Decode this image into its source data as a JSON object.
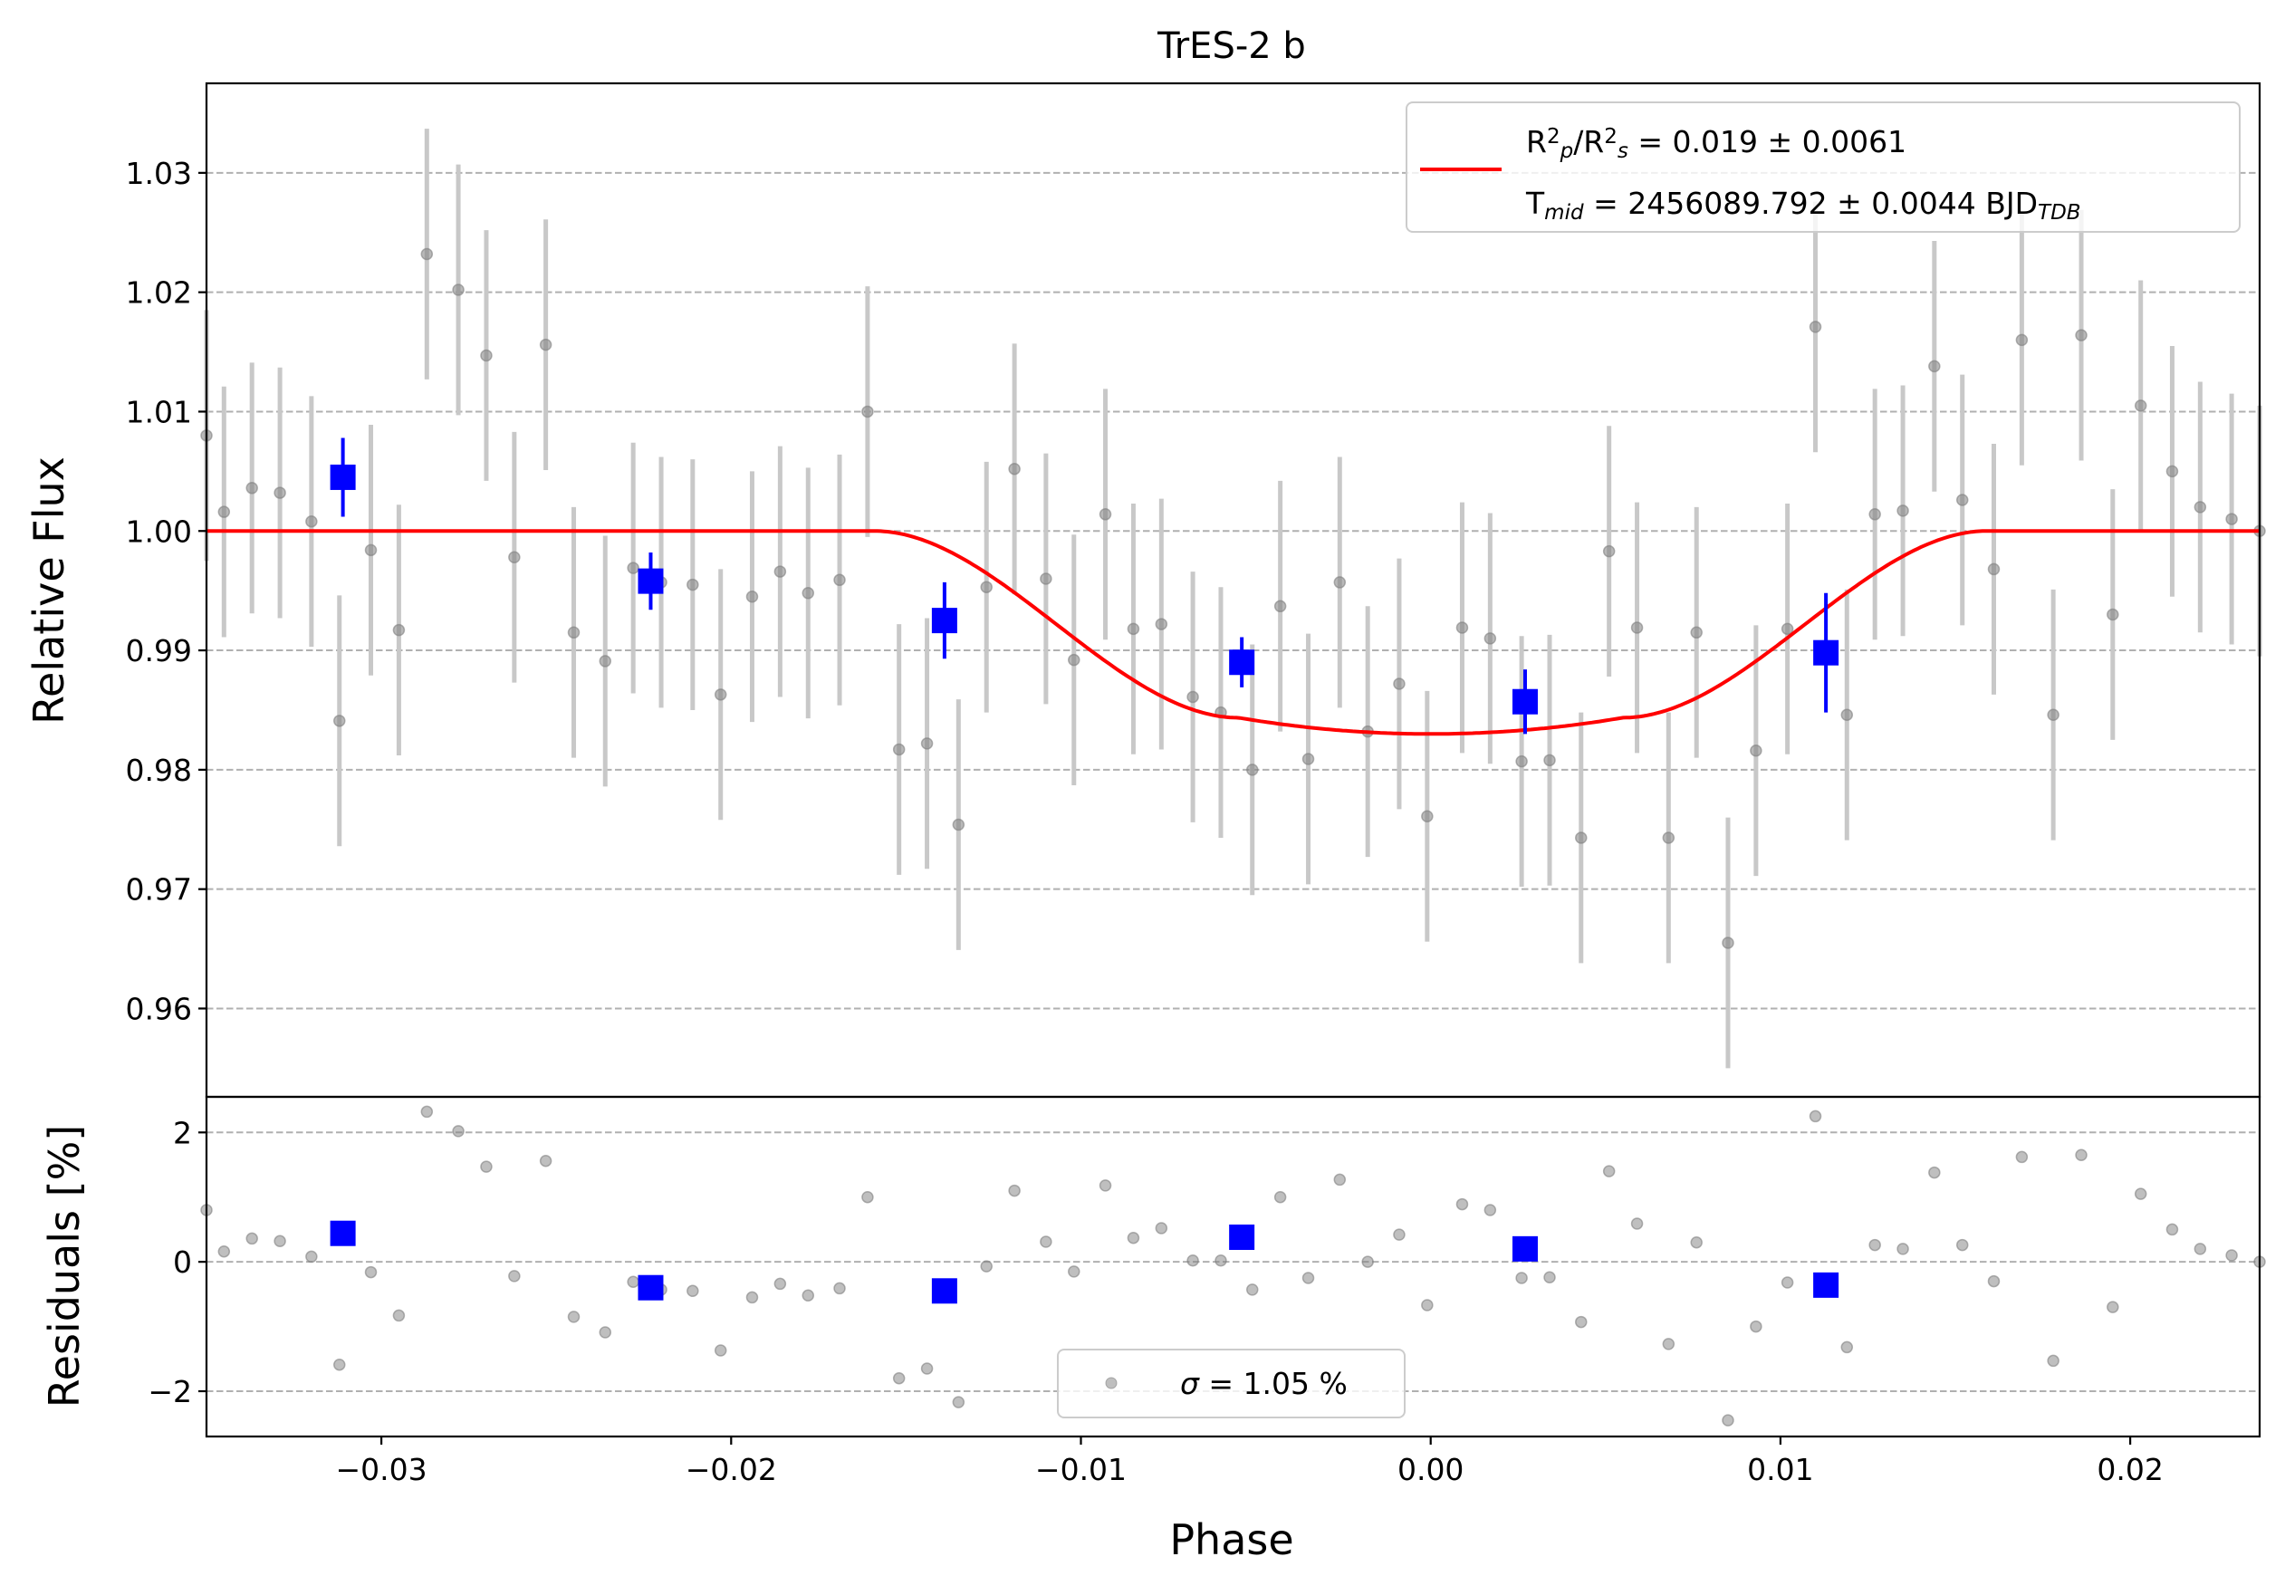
{
  "chart_data": [
    {
      "type": "scatter",
      "title": "TrES-2 b",
      "xlabel": "",
      "ylabel": "Relative Flux",
      "xlim": [
        -0.035,
        0.0237
      ],
      "ylim": [
        0.9526,
        1.0375
      ],
      "yticks": [
        0.96,
        0.97,
        0.98,
        0.99,
        1.0,
        1.01,
        1.02,
        1.03
      ],
      "ytick_labels": [
        "0.96",
        "0.97",
        "0.98",
        "0.99",
        "1.00",
        "1.01",
        "1.02",
        "1.03"
      ],
      "grid": "horizontal dashed",
      "legend_position": "top-right",
      "legend": {
        "entries": [
          {
            "line1_parts": [
              [
                "R",
                "normal"
              ],
              [
                "2",
                "sup"
              ],
              [
                "p",
                "sub"
              ],
              [
                "/R",
                "normal"
              ],
              [
                "2",
                "sup"
              ],
              [
                "s",
                "sub"
              ],
              [
                " = 0.019 ± 0.0061",
                "normal"
              ]
            ],
            "line2_parts": [
              [
                "T",
                "normal"
              ],
              [
                "mid",
                "sub"
              ],
              [
                " = 2456089.792 ± 0.0044 BJD",
                "normal"
              ],
              [
                "TDB",
                "sub"
              ]
            ]
          }
        ]
      },
      "model_line": {
        "color": "#ff0000",
        "depth_fraction": 0.017,
        "ingress_start": -0.0159,
        "ingress_end": -0.0055,
        "egress_start": 0.0055,
        "egress_end": 0.0159
      },
      "points": {
        "color": "#808080",
        "errorbar_color": "#c8c8c8",
        "x": [
          -0.035,
          -0.0345,
          -0.0337,
          -0.0329,
          -0.032,
          -0.0312,
          -0.0303,
          -0.0295,
          -0.0287,
          -0.0278,
          -0.027,
          -0.0262,
          -0.0253,
          -0.0245,
          -0.0236,
          -0.0228,
          -0.022,
          -0.0211,
          -0.0203,
          -0.0194,
          -0.0186,
          -0.0178,
          -0.0169,
          -0.0161,
          -0.0152,
          -0.0144,
          -0.0135,
          -0.0127,
          -0.0119,
          -0.011,
          -0.0102,
          -0.0093,
          -0.0085,
          -0.0077,
          -0.0068,
          -0.006,
          -0.0051,
          -0.0043,
          -0.0035,
          -0.0026,
          -0.0018,
          -0.0009,
          -0.0001,
          0.0009,
          0.0017,
          0.0026,
          0.0034,
          0.0043,
          0.0051,
          0.0059,
          0.0068,
          0.0076,
          0.0085,
          0.0093,
          0.0102,
          0.011,
          0.0119,
          0.0127,
          0.0135,
          0.0144,
          0.0152,
          0.0161,
          0.0169,
          0.0178,
          0.0186,
          0.0195,
          0.0203,
          0.0212,
          0.022,
          0.0229,
          0.0237
        ],
        "y": [
          1.008,
          1.0016,
          1.0036,
          1.0032,
          1.0008,
          0.9841,
          0.9984,
          0.9917,
          1.0232,
          1.0202,
          1.0147,
          0.9978,
          1.0156,
          0.9915,
          0.9891,
          0.9969,
          0.9957,
          0.9955,
          0.9863,
          0.9945,
          0.9966,
          0.9948,
          0.9959,
          1.01,
          0.9817,
          0.9822,
          0.9754,
          0.9953,
          1.0052,
          0.996,
          0.9892,
          1.0014,
          0.9918,
          0.9922,
          0.9861,
          0.9848,
          0.98,
          0.9937,
          0.9809,
          0.9957,
          0.9832,
          0.9872,
          0.9761,
          0.9919,
          0.991,
          0.9807,
          0.9808,
          0.9743,
          0.9983,
          0.9919,
          0.9743,
          0.9915,
          0.9655,
          0.9816,
          0.9918,
          1.0171,
          0.9846,
          1.0014,
          1.0017,
          1.0138,
          1.0026,
          0.9968,
          1.016,
          0.9846,
          1.0164,
          0.993,
          1.0105,
          1.005,
          1.002,
          1.001,
          1.0
        ],
        "yerr": 0.0105
      },
      "binned": {
        "color": "#0000ff",
        "x": [
          -0.0311,
          -0.0223,
          -0.0139,
          -0.0054,
          0.0027,
          0.0113
        ],
        "y": [
          1.0045,
          0.9958,
          0.9925,
          0.989,
          0.9857,
          0.9898
        ],
        "yerr": [
          0.0033,
          0.0024,
          0.0032,
          0.0021,
          0.0027,
          0.005
        ]
      }
    },
    {
      "type": "scatter",
      "title": "",
      "xlabel": "Phase",
      "ylabel": "Residuals [%]",
      "xlim": [
        -0.035,
        0.0237
      ],
      "ylim": [
        -2.7,
        2.55
      ],
      "yticks": [
        -2,
        0,
        2
      ],
      "ytick_labels": [
        "−2",
        "0",
        "2"
      ],
      "xticks": [
        -0.03,
        -0.02,
        -0.01,
        0.0,
        0.01,
        0.02
      ],
      "xtick_labels": [
        "−0.03",
        "−0.02",
        "−0.01",
        "0.00",
        "0.01",
        "0.02"
      ],
      "grid": "horizontal dashed",
      "legend_position": "bottom-center",
      "legend": {
        "entries": [
          {
            "parts": [
              [
                "σ",
                "italic"
              ],
              [
                " = 1.05 %",
                "normal"
              ]
            ]
          }
        ]
      },
      "points": {
        "color": "#808080",
        "x": [
          -0.035,
          -0.0345,
          -0.0337,
          -0.0329,
          -0.032,
          -0.0312,
          -0.0303,
          -0.0295,
          -0.0287,
          -0.0278,
          -0.027,
          -0.0262,
          -0.0253,
          -0.0245,
          -0.0236,
          -0.0228,
          -0.022,
          -0.0211,
          -0.0203,
          -0.0194,
          -0.0186,
          -0.0178,
          -0.0169,
          -0.0161,
          -0.0152,
          -0.0144,
          -0.0135,
          -0.0127,
          -0.0119,
          -0.011,
          -0.0102,
          -0.0093,
          -0.0085,
          -0.0077,
          -0.0068,
          -0.006,
          -0.0051,
          -0.0043,
          -0.0035,
          -0.0026,
          -0.0018,
          -0.0009,
          -0.0001,
          0.0009,
          0.0017,
          0.0026,
          0.0034,
          0.0043,
          0.0051,
          0.0059,
          0.0068,
          0.0076,
          0.0085,
          0.0093,
          0.0102,
          0.011,
          0.0119,
          0.0127,
          0.0135,
          0.0144,
          0.0152,
          0.0161,
          0.0169,
          0.0178,
          0.0186,
          0.0195,
          0.0203,
          0.0212,
          0.022,
          0.0229,
          0.0237
        ],
        "y": [
          0.8,
          0.16,
          0.36,
          0.32,
          0.08,
          -1.59,
          -0.16,
          -0.83,
          2.32,
          2.02,
          1.47,
          -0.22,
          1.56,
          -0.85,
          -1.09,
          -0.31,
          -0.43,
          -0.45,
          -1.37,
          -0.55,
          -0.34,
          -0.52,
          -0.41,
          1.0,
          -1.8,
          -1.65,
          -2.17,
          -0.07,
          1.1,
          0.31,
          -0.15,
          1.18,
          0.37,
          0.52,
          0.02,
          0.02,
          -0.43,
          1.0,
          -0.25,
          1.27,
          0.0,
          0.42,
          -0.67,
          0.89,
          0.8,
          -0.25,
          -0.24,
          -0.93,
          1.4,
          0.59,
          -1.27,
          0.3,
          -2.45,
          -1.0,
          -0.32,
          2.25,
          -1.32,
          0.26,
          0.2,
          1.38,
          0.26,
          -0.3,
          1.62,
          -1.53,
          1.65,
          -0.7,
          1.05,
          0.5,
          0.2,
          0.1,
          0.0
        ]
      },
      "binned": {
        "color": "#0000ff",
        "x": [
          -0.0311,
          -0.0223,
          -0.0139,
          -0.0054,
          0.0027,
          0.0113
        ],
        "y": [
          0.44,
          -0.4,
          -0.45,
          0.38,
          0.2,
          -0.36
        ]
      }
    }
  ]
}
